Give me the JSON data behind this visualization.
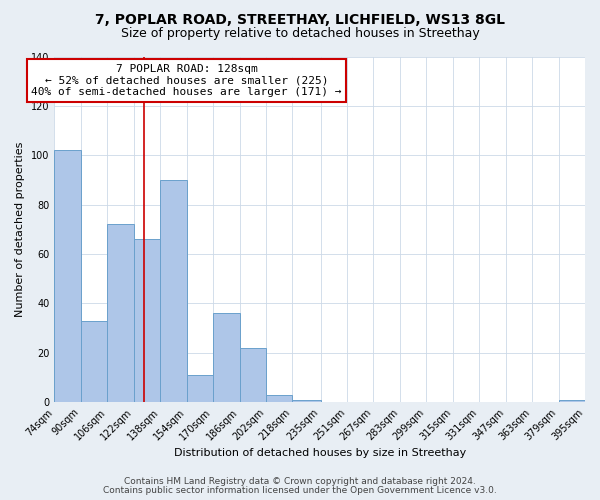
{
  "title1": "7, POPLAR ROAD, STREETHAY, LICHFIELD, WS13 8GL",
  "title2": "Size of property relative to detached houses in Streethay",
  "xlabel": "Distribution of detached houses by size in Streethay",
  "ylabel": "Number of detached properties",
  "bar_values": [
    102,
    33,
    72,
    66,
    90,
    11,
    36,
    22,
    3,
    1,
    0,
    0,
    0,
    0,
    0,
    0,
    0,
    0,
    0,
    1
  ],
  "bin_edges": [
    74,
    90,
    106,
    122,
    138,
    154,
    170,
    186,
    202,
    218,
    235,
    251,
    267,
    283,
    299,
    315,
    331,
    347,
    363,
    379,
    395
  ],
  "tick_labels": [
    "74sqm",
    "90sqm",
    "106sqm",
    "122sqm",
    "138sqm",
    "154sqm",
    "170sqm",
    "186sqm",
    "202sqm",
    "218sqm",
    "235sqm",
    "251sqm",
    "267sqm",
    "283sqm",
    "299sqm",
    "315sqm",
    "331sqm",
    "347sqm",
    "363sqm",
    "379sqm",
    "395sqm"
  ],
  "bar_color": "#aec6e8",
  "bar_edge_color": "#6aa0cc",
  "grid_color": "#ccd9e8",
  "annotation_text": "7 POPLAR ROAD: 128sqm\n← 52% of detached houses are smaller (225)\n40% of semi-detached houses are larger (171) →",
  "vline_x": 128,
  "vline_color": "#cc0000",
  "box_edge_color": "#cc0000",
  "ylim": [
    0,
    140
  ],
  "yticks": [
    0,
    20,
    40,
    60,
    80,
    100,
    120,
    140
  ],
  "footer1": "Contains HM Land Registry data © Crown copyright and database right 2024.",
  "footer2": "Contains public sector information licensed under the Open Government Licence v3.0.",
  "bg_color": "#e8eef4",
  "plot_bg_color": "#ffffff",
  "title1_fontsize": 10,
  "title2_fontsize": 9,
  "axis_label_fontsize": 8,
  "tick_fontsize": 7,
  "annotation_fontsize": 8,
  "footer_fontsize": 6.5
}
